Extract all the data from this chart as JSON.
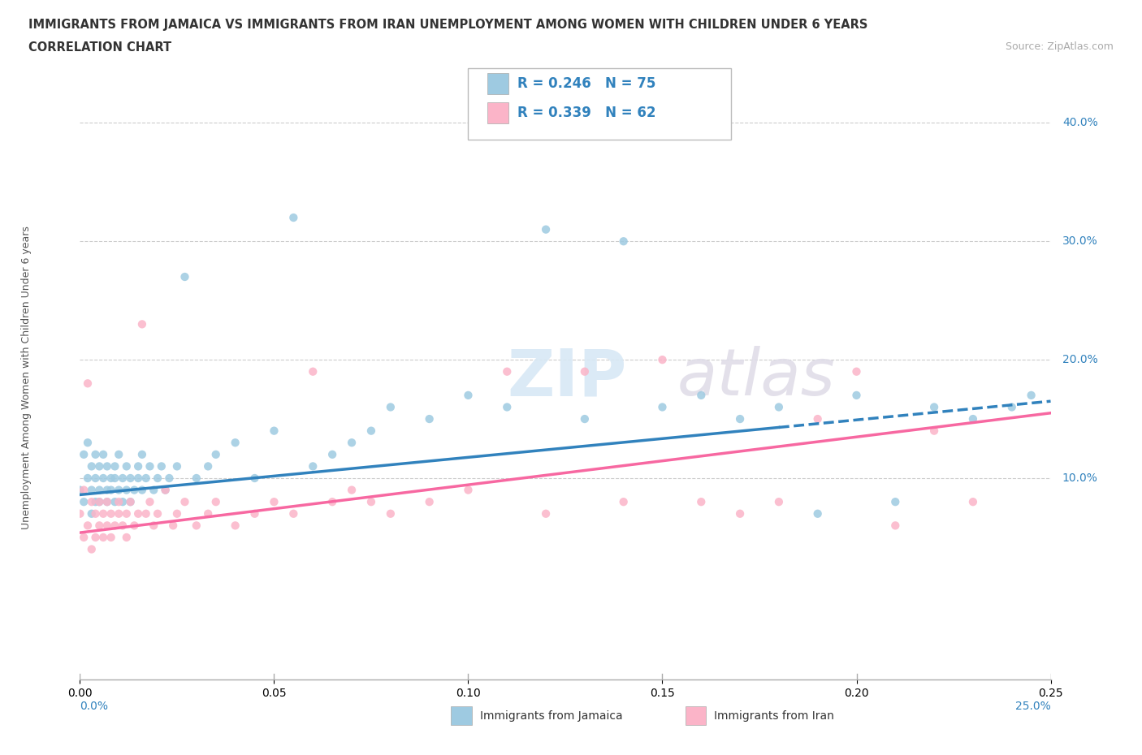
{
  "title_line1": "IMMIGRANTS FROM JAMAICA VS IMMIGRANTS FROM IRAN UNEMPLOYMENT AMONG WOMEN WITH CHILDREN UNDER 6 YEARS",
  "title_line2": "CORRELATION CHART",
  "source": "Source: ZipAtlas.com",
  "ylabel": "Unemployment Among Women with Children Under 6 years",
  "ylabel_ticks": [
    "10.0%",
    "20.0%",
    "30.0%",
    "40.0%"
  ],
  "ylabel_values": [
    0.1,
    0.2,
    0.3,
    0.4
  ],
  "xlim": [
    0.0,
    0.25
  ],
  "ylim": [
    -0.07,
    0.44
  ],
  "color_blue": "#9ecae1",
  "color_pink": "#fbb4c8",
  "color_blue_line": "#3182bd",
  "color_pink_line": "#f768a1",
  "watermark_zip": "ZIP",
  "watermark_atlas": "atlas",
  "jamaica_R": 0.246,
  "jamaica_N": 75,
  "iran_R": 0.339,
  "iran_N": 62,
  "jamaica_x": [
    0.0,
    0.001,
    0.001,
    0.002,
    0.002,
    0.003,
    0.003,
    0.003,
    0.004,
    0.004,
    0.004,
    0.005,
    0.005,
    0.005,
    0.006,
    0.006,
    0.007,
    0.007,
    0.007,
    0.008,
    0.008,
    0.009,
    0.009,
    0.009,
    0.01,
    0.01,
    0.011,
    0.011,
    0.012,
    0.012,
    0.013,
    0.013,
    0.014,
    0.015,
    0.015,
    0.016,
    0.016,
    0.017,
    0.018,
    0.019,
    0.02,
    0.021,
    0.022,
    0.023,
    0.025,
    0.027,
    0.03,
    0.033,
    0.035,
    0.04,
    0.045,
    0.05,
    0.055,
    0.06,
    0.065,
    0.07,
    0.075,
    0.08,
    0.09,
    0.1,
    0.11,
    0.12,
    0.13,
    0.14,
    0.15,
    0.16,
    0.17,
    0.18,
    0.19,
    0.2,
    0.21,
    0.22,
    0.23,
    0.24,
    0.245
  ],
  "jamaica_y": [
    0.09,
    0.12,
    0.08,
    0.1,
    0.13,
    0.09,
    0.11,
    0.07,
    0.1,
    0.08,
    0.12,
    0.09,
    0.11,
    0.08,
    0.1,
    0.12,
    0.09,
    0.11,
    0.08,
    0.1,
    0.09,
    0.11,
    0.08,
    0.1,
    0.09,
    0.12,
    0.1,
    0.08,
    0.11,
    0.09,
    0.1,
    0.08,
    0.09,
    0.11,
    0.1,
    0.09,
    0.12,
    0.1,
    0.11,
    0.09,
    0.1,
    0.11,
    0.09,
    0.1,
    0.11,
    0.27,
    0.1,
    0.11,
    0.12,
    0.13,
    0.1,
    0.14,
    0.32,
    0.11,
    0.12,
    0.13,
    0.14,
    0.16,
    0.15,
    0.17,
    0.16,
    0.31,
    0.15,
    0.3,
    0.16,
    0.17,
    0.15,
    0.16,
    0.07,
    0.17,
    0.08,
    0.16,
    0.15,
    0.16,
    0.17
  ],
  "iran_x": [
    0.0,
    0.001,
    0.001,
    0.002,
    0.002,
    0.003,
    0.003,
    0.004,
    0.004,
    0.005,
    0.005,
    0.006,
    0.006,
    0.007,
    0.007,
    0.008,
    0.008,
    0.009,
    0.01,
    0.01,
    0.011,
    0.012,
    0.012,
    0.013,
    0.014,
    0.015,
    0.016,
    0.017,
    0.018,
    0.019,
    0.02,
    0.022,
    0.024,
    0.025,
    0.027,
    0.03,
    0.033,
    0.035,
    0.04,
    0.045,
    0.05,
    0.055,
    0.06,
    0.065,
    0.07,
    0.075,
    0.08,
    0.09,
    0.1,
    0.11,
    0.12,
    0.13,
    0.14,
    0.15,
    0.16,
    0.17,
    0.18,
    0.19,
    0.2,
    0.21,
    0.22,
    0.23
  ],
  "iran_y": [
    0.07,
    0.09,
    0.05,
    0.18,
    0.06,
    0.08,
    0.04,
    0.07,
    0.05,
    0.08,
    0.06,
    0.07,
    0.05,
    0.08,
    0.06,
    0.07,
    0.05,
    0.06,
    0.08,
    0.07,
    0.06,
    0.07,
    0.05,
    0.08,
    0.06,
    0.07,
    0.23,
    0.07,
    0.08,
    0.06,
    0.07,
    0.09,
    0.06,
    0.07,
    0.08,
    0.06,
    0.07,
    0.08,
    0.06,
    0.07,
    0.08,
    0.07,
    0.19,
    0.08,
    0.09,
    0.08,
    0.07,
    0.08,
    0.09,
    0.19,
    0.07,
    0.19,
    0.08,
    0.2,
    0.08,
    0.07,
    0.08,
    0.15,
    0.19,
    0.06,
    0.14,
    0.08
  ],
  "trend_jamaica_x0": 0.0,
  "trend_jamaica_y0": 0.086,
  "trend_jamaica_x1": 0.25,
  "trend_jamaica_y1": 0.165,
  "trend_jamaica_solid_end": 0.18,
  "trend_iran_x0": 0.0,
  "trend_iran_y0": 0.054,
  "trend_iran_x1": 0.25,
  "trend_iran_y1": 0.155
}
